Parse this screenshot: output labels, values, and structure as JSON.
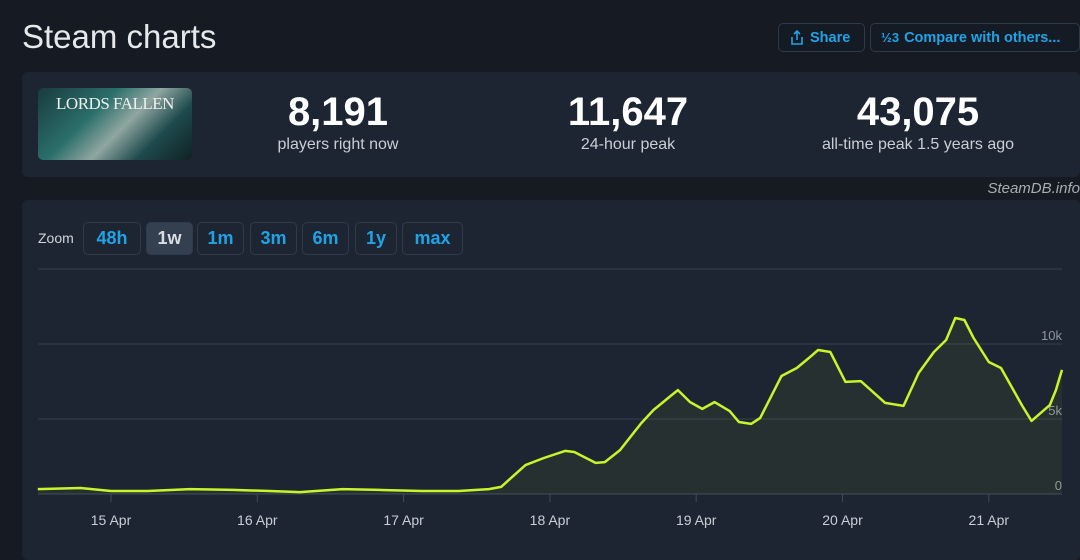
{
  "header": {
    "title": "Steam charts",
    "share_label": "Share",
    "compare_label": "Compare with others...",
    "share_icon": "share-icon",
    "compare_icon": "fraction-icon"
  },
  "game": {
    "cover_text": "LORDS FALLEN"
  },
  "stats": [
    {
      "value": "8,191",
      "label": "players right now"
    },
    {
      "value": "11,647",
      "label": "24-hour peak"
    },
    {
      "value": "43,075",
      "label": "all-time peak 1.5 years ago"
    }
  ],
  "credit": "SteamDB.info",
  "zoom": {
    "label": "Zoom",
    "options": [
      "48h",
      "1w",
      "1m",
      "3m",
      "6m",
      "1y",
      "max"
    ],
    "active": "1w"
  },
  "chart_data": {
    "type": "area",
    "line_color": "#c6f62a",
    "grid": true,
    "x_ticks": [
      "15 Apr",
      "16 Apr",
      "17 Apr",
      "18 Apr",
      "19 Apr",
      "20 Apr",
      "21 Apr"
    ],
    "y_ticks": [
      {
        "v": 0,
        "label": "0"
      },
      {
        "v": 5000,
        "label": "5k"
      },
      {
        "v": 10000,
        "label": "10k"
      }
    ],
    "ylim": [
      0,
      15000
    ],
    "points": [
      [
        "Apr 14 12:00",
        330
      ],
      [
        "Apr 14 19:00",
        400
      ],
      [
        "Apr 15 00:00",
        200
      ],
      [
        "Apr 15 06:00",
        200
      ],
      [
        "Apr 15 13:00",
        330
      ],
      [
        "Apr 15 20:00",
        270
      ],
      [
        "Apr 16 02:00",
        200
      ],
      [
        "Apr 16 07:00",
        130
      ],
      [
        "Apr 16 14:00",
        330
      ],
      [
        "Apr 16 20:00",
        270
      ],
      [
        "Apr 17 03:00",
        200
      ],
      [
        "Apr 17 09:00",
        200
      ],
      [
        "Apr 17 14:00",
        330
      ],
      [
        "Apr 17 16:00",
        470
      ],
      [
        "Apr 17 20:00",
        1930
      ],
      [
        "Apr 17 23:00",
        2400
      ],
      [
        "Apr 18 02:30",
        2870
      ],
      [
        "Apr 18 04:00",
        2800
      ],
      [
        "Apr 18 07:30",
        2070
      ],
      [
        "Apr 18 09:00",
        2130
      ],
      [
        "Apr 18 11:30",
        2930
      ],
      [
        "Apr 18 15:00",
        4730
      ],
      [
        "Apr 18 17:00",
        5600
      ],
      [
        "Apr 18 20:00",
        6600
      ],
      [
        "Apr 18 21:00",
        6930
      ],
      [
        "Apr 18 23:00",
        6130
      ],
      [
        "Apr 19 01:00",
        5670
      ],
      [
        "Apr 19 03:00",
        6130
      ],
      [
        "Apr 19 05:30",
        5530
      ],
      [
        "Apr 19 07:00",
        4800
      ],
      [
        "Apr 19 09:00",
        4670
      ],
      [
        "Apr 19 10:30",
        5070
      ],
      [
        "Apr 19 14:00",
        7870
      ],
      [
        "Apr 19 16:30",
        8400
      ],
      [
        "Apr 19 18:30",
        9070
      ],
      [
        "Apr 19 20:00",
        9600
      ],
      [
        "Apr 19 22:00",
        9470
      ],
      [
        "Apr 20 00:30",
        7470
      ],
      [
        "Apr 20 03:00",
        7530
      ],
      [
        "Apr 20 07:00",
        6070
      ],
      [
        "Apr 20 10:00",
        5870
      ],
      [
        "Apr 20 12:30",
        8070
      ],
      [
        "Apr 20 15:00",
        9470
      ],
      [
        "Apr 20 17:00",
        10270
      ],
      [
        "Apr 20 18:30",
        11730
      ],
      [
        "Apr 20 20:00",
        11600
      ],
      [
        "Apr 20 21:30",
        10400
      ],
      [
        "Apr 21 00:00",
        8800
      ],
      [
        "Apr 21 02:00",
        8400
      ],
      [
        "Apr 21 05:30",
        5870
      ],
      [
        "Apr 21 07:00",
        4870
      ],
      [
        "Apr 21 10:00",
        5930
      ],
      [
        "Apr 21 11:00",
        6930
      ],
      [
        "Apr 21 12:00",
        8270
      ]
    ]
  }
}
